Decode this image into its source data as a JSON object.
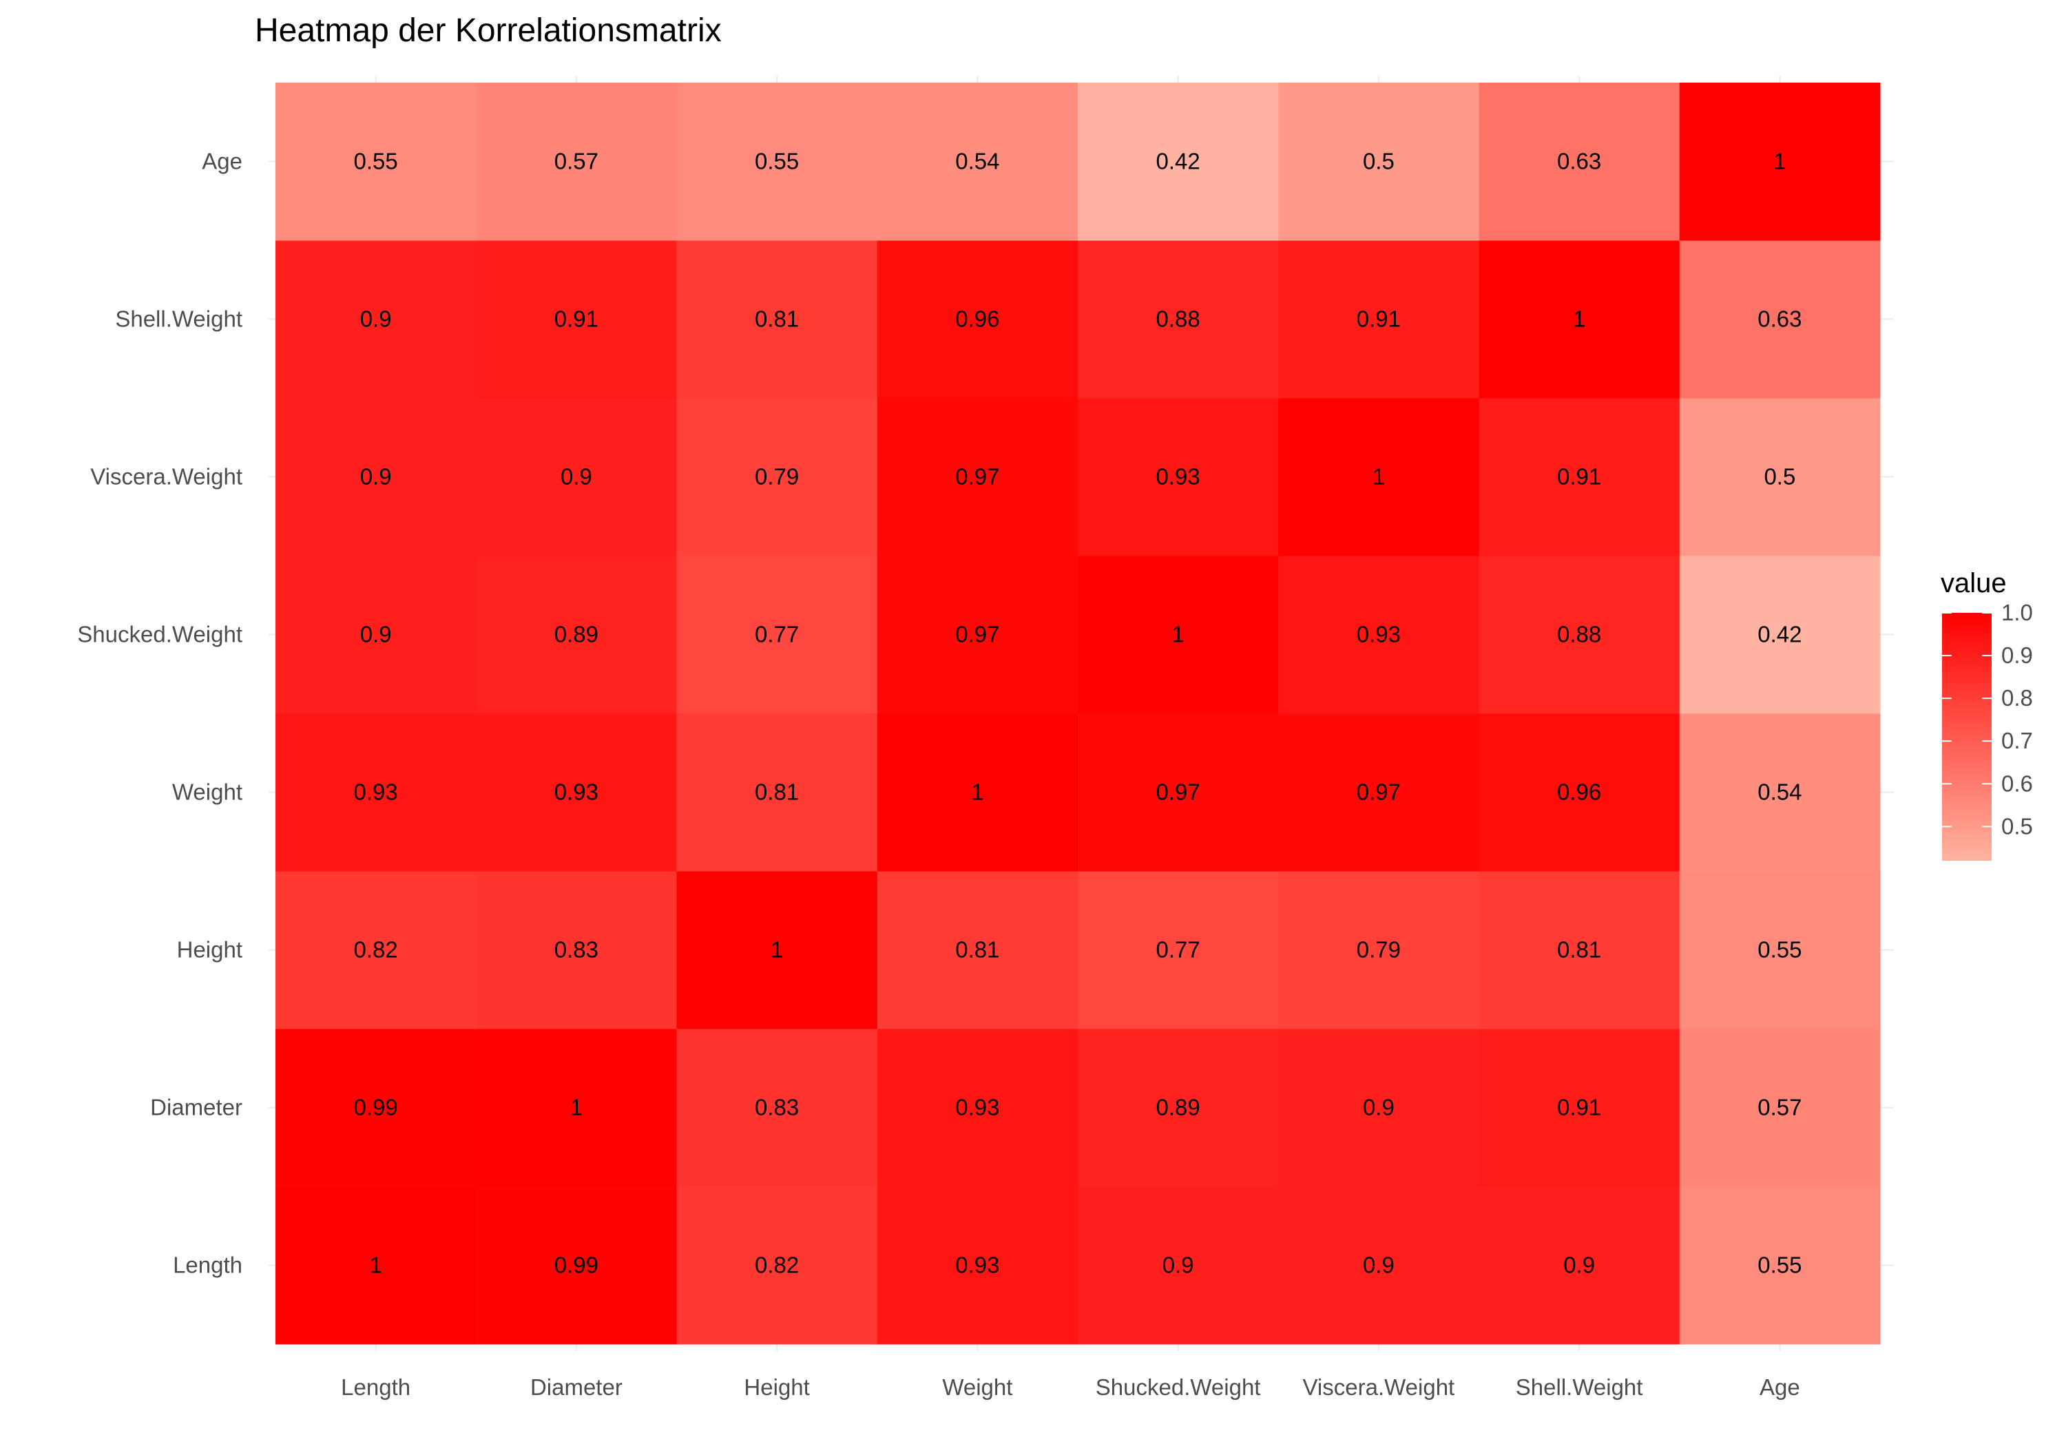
{
  "chart_data": {
    "type": "heatmap",
    "title": "Heatmap der Korrelationsmatrix",
    "xlabel": "",
    "ylabel": "",
    "x_categories": [
      "Length",
      "Diameter",
      "Height",
      "Weight",
      "Shucked.Weight",
      "Viscera.Weight",
      "Shell.Weight",
      "Age"
    ],
    "y_categories": [
      "Length",
      "Diameter",
      "Height",
      "Weight",
      "Shucked.Weight",
      "Viscera.Weight",
      "Shell.Weight",
      "Age"
    ],
    "values": [
      [
        1,
        0.99,
        0.82,
        0.93,
        0.9,
        0.9,
        0.9,
        0.55
      ],
      [
        0.99,
        1,
        0.83,
        0.93,
        0.89,
        0.9,
        0.91,
        0.57
      ],
      [
        0.82,
        0.83,
        1,
        0.81,
        0.77,
        0.79,
        0.81,
        0.55
      ],
      [
        0.93,
        0.93,
        0.81,
        1,
        0.97,
        0.97,
        0.96,
        0.54
      ],
      [
        0.9,
        0.89,
        0.77,
        0.97,
        1,
        0.93,
        0.88,
        0.42
      ],
      [
        0.9,
        0.9,
        0.79,
        0.97,
        0.93,
        1,
        0.91,
        0.5
      ],
      [
        0.9,
        0.91,
        0.81,
        0.96,
        0.88,
        0.91,
        1,
        0.63
      ],
      [
        0.55,
        0.57,
        0.55,
        0.54,
        0.42,
        0.5,
        0.63,
        1
      ]
    ],
    "value_labels": [
      [
        "1",
        "0.99",
        "0.82",
        "0.93",
        "0.9",
        "0.9",
        "0.9",
        "0.55"
      ],
      [
        "0.99",
        "1",
        "0.83",
        "0.93",
        "0.89",
        "0.9",
        "0.91",
        "0.57"
      ],
      [
        "0.82",
        "0.83",
        "1",
        "0.81",
        "0.77",
        "0.79",
        "0.81",
        "0.55"
      ],
      [
        "0.93",
        "0.93",
        "0.81",
        "1",
        "0.97",
        "0.97",
        "0.96",
        "0.54"
      ],
      [
        "0.9",
        "0.89",
        "0.77",
        "0.97",
        "1",
        "0.93",
        "0.88",
        "0.42"
      ],
      [
        "0.9",
        "0.9",
        "0.79",
        "0.97",
        "0.93",
        "1",
        "0.91",
        "0.5"
      ],
      [
        "0.9",
        "0.91",
        "0.81",
        "0.96",
        "0.88",
        "0.91",
        "1",
        "0.63"
      ],
      [
        "0.55",
        "0.57",
        "0.55",
        "0.54",
        "0.42",
        "0.5",
        "0.63",
        "1"
      ]
    ],
    "legend": {
      "title": "value",
      "ticks": [
        "1.0",
        "0.9",
        "0.8",
        "0.7",
        "0.6",
        "0.5"
      ],
      "tick_values": [
        1.0,
        0.9,
        0.8,
        0.7,
        0.6,
        0.5
      ],
      "range": [
        0.42,
        1.0
      ],
      "low_color": "#ffb3a0",
      "high_color": "#ff0000",
      "placement": "right"
    },
    "grid": true
  }
}
